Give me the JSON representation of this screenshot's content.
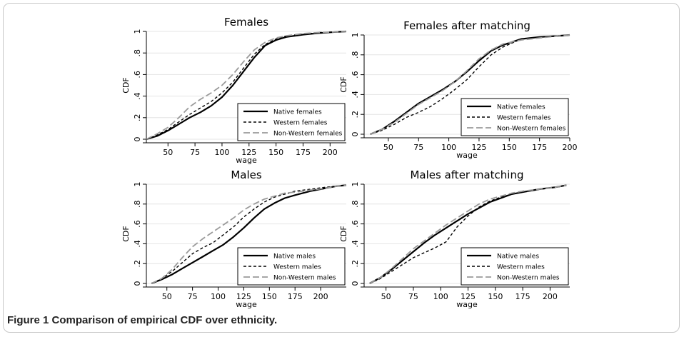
{
  "caption": "Figure 1 Comparison of empirical CDF over ethnicity.",
  "styles": {
    "native": {
      "color": "#000000",
      "dash": "",
      "width": 2.2
    },
    "western": {
      "color": "#000000",
      "dash": "4,3",
      "width": 1.4
    },
    "nonwestern": {
      "color": "#9a9a9a",
      "dash": "9,4",
      "width": 1.8
    }
  },
  "chart_data": [
    {
      "type": "line",
      "title": "Females",
      "xlabel": "wage",
      "ylabel": "CDF",
      "xlim": [
        30,
        215
      ],
      "ylim": [
        0,
        1
      ],
      "xticks": [
        50,
        75,
        100,
        125,
        150,
        175,
        200
      ],
      "yticks": [
        0,
        0.2,
        0.4,
        0.6,
        0.8,
        1
      ],
      "ytick_labels": [
        "0",
        ".2",
        ".4",
        ".6",
        ".8",
        "1"
      ],
      "legend_position": "bottom-right",
      "series": [
        {
          "name": "Native females",
          "style": "native",
          "x": [
            30,
            40,
            50,
            60,
            70,
            80,
            90,
            100,
            110,
            120,
            130,
            140,
            150,
            160,
            175,
            190,
            205,
            215
          ],
          "y": [
            0,
            0.03,
            0.08,
            0.14,
            0.2,
            0.25,
            0.31,
            0.39,
            0.5,
            0.63,
            0.76,
            0.87,
            0.92,
            0.95,
            0.97,
            0.985,
            0.995,
            1
          ]
        },
        {
          "name": "Western females",
          "style": "western",
          "x": [
            30,
            40,
            50,
            60,
            70,
            80,
            90,
            100,
            110,
            120,
            130,
            140,
            150,
            160,
            175,
            190,
            205,
            215
          ],
          "y": [
            0,
            0.04,
            0.09,
            0.16,
            0.23,
            0.29,
            0.35,
            0.43,
            0.53,
            0.66,
            0.79,
            0.88,
            0.93,
            0.96,
            0.975,
            0.99,
            0.995,
            1
          ]
        },
        {
          "name": "Non-Western females",
          "style": "nonwestern",
          "x": [
            30,
            40,
            50,
            60,
            70,
            80,
            90,
            100,
            110,
            120,
            130,
            140,
            150,
            160,
            175,
            190,
            205,
            215
          ],
          "y": [
            0,
            0.05,
            0.11,
            0.2,
            0.3,
            0.37,
            0.43,
            0.5,
            0.6,
            0.72,
            0.83,
            0.9,
            0.94,
            0.96,
            0.98,
            0.99,
            0.995,
            1
          ]
        }
      ]
    },
    {
      "type": "line",
      "title": "Females after matching",
      "xlabel": "wage",
      "ylabel": "CDF",
      "xlim": [
        30,
        200
      ],
      "ylim": [
        0,
        1
      ],
      "xticks": [
        50,
        75,
        100,
        125,
        150,
        175,
        200
      ],
      "yticks": [
        0,
        0.2,
        0.4,
        0.6,
        0.8,
        1
      ],
      "ytick_labels": [
        "0",
        ".2",
        ".4",
        ".6",
        ".8",
        "1"
      ],
      "legend_position": "bottom-right",
      "series": [
        {
          "name": "Native females",
          "style": "native",
          "x": [
            35,
            45,
            55,
            65,
            75,
            85,
            95,
            105,
            115,
            125,
            135,
            145,
            160,
            175,
            190,
            200
          ],
          "y": [
            0,
            0.05,
            0.13,
            0.22,
            0.31,
            0.38,
            0.45,
            0.53,
            0.63,
            0.74,
            0.84,
            0.9,
            0.96,
            0.98,
            0.99,
            1
          ]
        },
        {
          "name": "Western females",
          "style": "western",
          "x": [
            35,
            45,
            55,
            65,
            75,
            85,
            95,
            105,
            115,
            125,
            135,
            145,
            160,
            175,
            190,
            200
          ],
          "y": [
            0,
            0.04,
            0.1,
            0.17,
            0.22,
            0.28,
            0.36,
            0.45,
            0.55,
            0.68,
            0.8,
            0.88,
            0.96,
            0.98,
            0.99,
            1
          ]
        },
        {
          "name": "Non-Western females",
          "style": "nonwestern",
          "x": [
            35,
            45,
            55,
            65,
            75,
            85,
            95,
            105,
            115,
            125,
            135,
            145,
            160,
            175,
            190,
            200
          ],
          "y": [
            0,
            0.05,
            0.12,
            0.21,
            0.3,
            0.37,
            0.44,
            0.53,
            0.64,
            0.76,
            0.85,
            0.91,
            0.95,
            0.97,
            0.99,
            1
          ]
        }
      ]
    },
    {
      "type": "line",
      "title": "Males",
      "xlabel": "wage",
      "ylabel": "CDF",
      "xlim": [
        30,
        225
      ],
      "ylim": [
        0,
        1
      ],
      "xticks": [
        50,
        75,
        100,
        125,
        150,
        175,
        200
      ],
      "yticks": [
        0,
        0.2,
        0.4,
        0.6,
        0.8,
        1
      ],
      "ytick_labels": [
        "0",
        ".2",
        ".4",
        ".6",
        ".8",
        "1"
      ],
      "legend_position": "bottom-right",
      "series": [
        {
          "name": "Native males",
          "style": "native",
          "x": [
            35,
            45,
            55,
            65,
            75,
            85,
            95,
            105,
            115,
            125,
            135,
            145,
            155,
            165,
            175,
            190,
            205,
            215,
            225
          ],
          "y": [
            0,
            0.04,
            0.09,
            0.15,
            0.21,
            0.27,
            0.33,
            0.39,
            0.47,
            0.56,
            0.66,
            0.75,
            0.81,
            0.86,
            0.89,
            0.93,
            0.96,
            0.98,
            0.99
          ]
        },
        {
          "name": "Western males",
          "style": "western",
          "x": [
            35,
            45,
            55,
            65,
            75,
            85,
            95,
            105,
            115,
            125,
            135,
            145,
            155,
            165,
            175,
            190,
            205,
            215,
            225
          ],
          "y": [
            0,
            0.05,
            0.12,
            0.21,
            0.3,
            0.36,
            0.41,
            0.49,
            0.57,
            0.67,
            0.75,
            0.82,
            0.87,
            0.9,
            0.93,
            0.95,
            0.97,
            0.98,
            0.99
          ]
        },
        {
          "name": "Non-Western males",
          "style": "nonwestern",
          "x": [
            35,
            45,
            55,
            65,
            75,
            85,
            95,
            105,
            115,
            125,
            135,
            145,
            155,
            165,
            175,
            190,
            205,
            215,
            225
          ],
          "y": [
            0,
            0.05,
            0.14,
            0.26,
            0.37,
            0.45,
            0.52,
            0.59,
            0.66,
            0.74,
            0.8,
            0.85,
            0.88,
            0.91,
            0.92,
            0.94,
            0.96,
            0.98,
            0.99
          ]
        }
      ]
    },
    {
      "type": "line",
      "title": "Males after matching",
      "xlabel": "wage",
      "ylabel": "CDF",
      "xlim": [
        30,
        218
      ],
      "ylim": [
        0,
        1
      ],
      "xticks": [
        50,
        75,
        100,
        125,
        150,
        175,
        200
      ],
      "yticks": [
        0,
        0.2,
        0.4,
        0.6,
        0.8,
        1
      ],
      "ytick_labels": [
        "0",
        ".2",
        ".4",
        ".6",
        ".8",
        "1"
      ],
      "legend_position": "bottom-right",
      "series": [
        {
          "name": "Native males",
          "style": "native",
          "x": [
            35,
            45,
            55,
            65,
            75,
            85,
            95,
            105,
            115,
            125,
            135,
            145,
            155,
            165,
            175,
            190,
            205,
            215
          ],
          "y": [
            0,
            0.06,
            0.14,
            0.23,
            0.32,
            0.41,
            0.49,
            0.56,
            0.63,
            0.7,
            0.76,
            0.82,
            0.86,
            0.9,
            0.92,
            0.95,
            0.97,
            0.99
          ]
        },
        {
          "name": "Western males",
          "style": "western",
          "x": [
            35,
            45,
            55,
            65,
            75,
            85,
            95,
            105,
            115,
            125,
            135,
            145,
            155,
            165,
            175,
            190,
            205,
            215
          ],
          "y": [
            0,
            0.05,
            0.12,
            0.19,
            0.26,
            0.31,
            0.36,
            0.42,
            0.57,
            0.68,
            0.77,
            0.83,
            0.87,
            0.9,
            0.92,
            0.95,
            0.97,
            0.99
          ]
        },
        {
          "name": "Non-Western males",
          "style": "nonwestern",
          "x": [
            35,
            45,
            55,
            65,
            75,
            85,
            95,
            105,
            115,
            125,
            135,
            145,
            155,
            165,
            175,
            190,
            205,
            215
          ],
          "y": [
            0,
            0.06,
            0.15,
            0.25,
            0.35,
            0.43,
            0.51,
            0.59,
            0.66,
            0.73,
            0.8,
            0.85,
            0.88,
            0.91,
            0.93,
            0.95,
            0.97,
            0.99
          ]
        }
      ]
    }
  ]
}
